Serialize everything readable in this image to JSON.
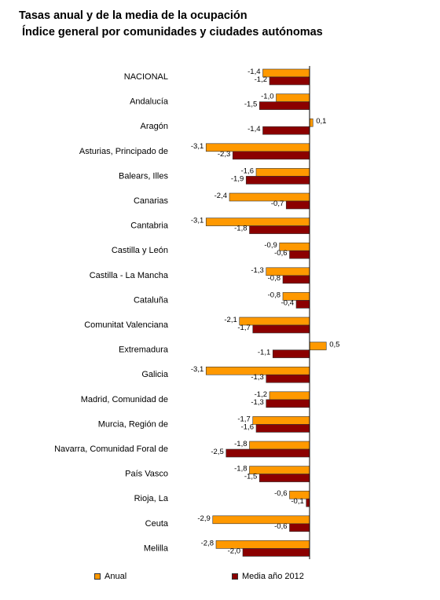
{
  "chart_data": {
    "type": "bar",
    "orientation": "horizontal",
    "title": "Tasas anual y de la media de la ocupación",
    "subtitle": "Índice general por comunidades y ciudades autónomas",
    "categories": [
      "NACIONAL",
      "Andalucía",
      "Aragón",
      "Asturias, Principado de",
      "Balears, Illes",
      "Canarias",
      "Cantabria",
      "Castilla y León",
      "Castilla - La Mancha",
      "Cataluña",
      "Comunitat Valenciana",
      "Extremadura",
      "Galicia",
      "Madrid, Comunidad de",
      "Murcia, Región de",
      "Navarra, Comunidad Foral de",
      "País Vasco",
      "Rioja, La",
      "Ceuta",
      "Melilla"
    ],
    "series": [
      {
        "name": "Anual",
        "color": "#FF9900",
        "values": [
          -1.4,
          -1.0,
          0.1,
          -3.1,
          -1.6,
          -2.4,
          -3.1,
          -0.9,
          -1.3,
          -0.8,
          -2.1,
          0.5,
          -3.1,
          -1.2,
          -1.7,
          -1.8,
          -1.8,
          -0.6,
          -2.9,
          -2.8
        ],
        "labels": [
          "-1,4",
          "-1,0",
          "0,1",
          "-3,1",
          "-1,6",
          "-2,4",
          "-3,1",
          "-0,9",
          "-1,3",
          "-0,8",
          "-2,1",
          "0,5",
          "-3,1",
          "-1,2",
          "-1,7",
          "-1,8",
          "-1,8",
          "-0,6",
          "-2,9",
          "-2,8"
        ]
      },
      {
        "name": "Media año 2012",
        "color": "#8B0000",
        "values": [
          -1.2,
          -1.5,
          -1.4,
          -2.3,
          -1.9,
          -0.7,
          -1.8,
          -0.6,
          -0.8,
          -0.4,
          -1.7,
          -1.1,
          -1.3,
          -1.3,
          -1.6,
          -2.5,
          -1.5,
          -0.1,
          -0.6,
          -2.0
        ],
        "labels": [
          "-1,2",
          "-1,5",
          "-1,4",
          "-2,3",
          "-1,9",
          "-0,7",
          "-1,8",
          "-0,6",
          "-0,8",
          "-0,4",
          "-1,7",
          "-1,1",
          "-1,3",
          "-1,3",
          "-1,6",
          "-2,5",
          "-1,5",
          "-0,1",
          "-0,6",
          "-2,0"
        ]
      }
    ],
    "legend_position": "bottom",
    "grid": false
  }
}
